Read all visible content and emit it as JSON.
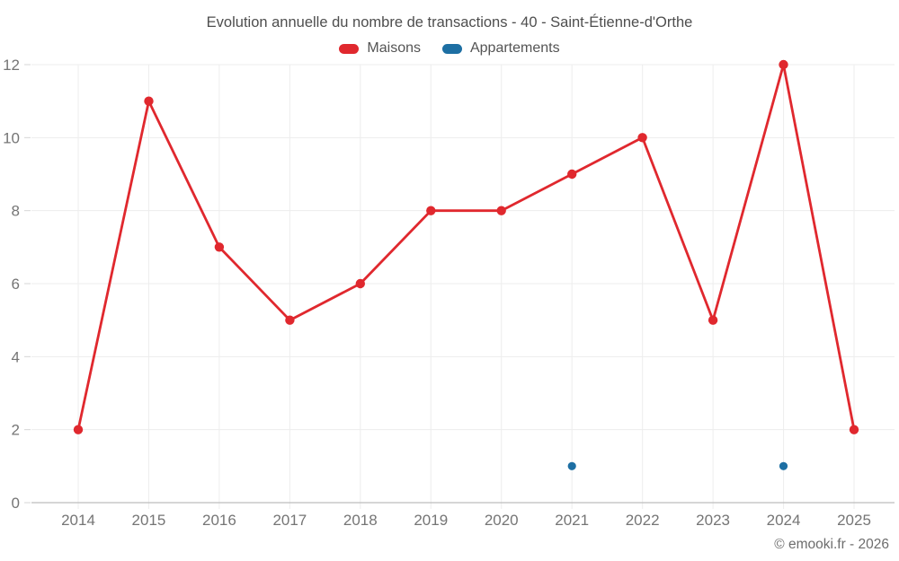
{
  "footer": {
    "credit": "© emooki.fr - 2026"
  },
  "chart_data": {
    "type": "line",
    "title": "Evolution annuelle du nombre de transactions - 40 - Saint-Étienne-d'Orthe",
    "categories": [
      "2014",
      "2015",
      "2016",
      "2017",
      "2018",
      "2019",
      "2020",
      "2021",
      "2022",
      "2023",
      "2024",
      "2025"
    ],
    "series": [
      {
        "name": "Maisons",
        "color": "#e0282e",
        "values": [
          2,
          11,
          7,
          5,
          6,
          8,
          8,
          9,
          10,
          5,
          12,
          2
        ]
      },
      {
        "name": "Appartements",
        "color": "#1d6fa3",
        "values": [
          null,
          null,
          null,
          null,
          null,
          null,
          null,
          1,
          null,
          null,
          1,
          null
        ]
      }
    ],
    "xlabel": "",
    "ylabel": "",
    "ylim": [
      0,
      12
    ],
    "yticks": [
      0,
      2,
      4,
      6,
      8,
      10,
      12
    ],
    "grid": true,
    "legend_position": "top",
    "grid_color": "#ededed",
    "axis_line_color": "#bdbdbd",
    "tick_label_color": "#757575"
  }
}
